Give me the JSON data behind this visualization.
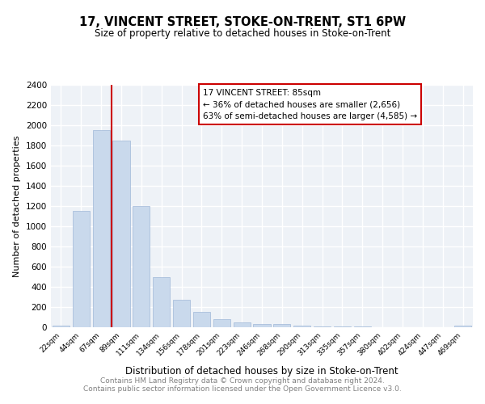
{
  "title": "17, VINCENT STREET, STOKE-ON-TRENT, ST1 6PW",
  "subtitle": "Size of property relative to detached houses in Stoke-on-Trent",
  "xlabel": "Distribution of detached houses by size in Stoke-on-Trent",
  "ylabel": "Number of detached properties",
  "categories": [
    "22sqm",
    "44sqm",
    "67sqm",
    "89sqm",
    "111sqm",
    "134sqm",
    "156sqm",
    "178sqm",
    "201sqm",
    "223sqm",
    "246sqm",
    "268sqm",
    "290sqm",
    "313sqm",
    "335sqm",
    "357sqm",
    "380sqm",
    "402sqm",
    "424sqm",
    "447sqm",
    "469sqm"
  ],
  "values": [
    20,
    1150,
    1950,
    1850,
    1200,
    500,
    270,
    150,
    80,
    50,
    35,
    30,
    15,
    10,
    8,
    5,
    3,
    3,
    2,
    2,
    15
  ],
  "bar_color": "#c9d9ec",
  "bar_edge_color": "#a0b8d8",
  "ylim": [
    0,
    2400
  ],
  "yticks": [
    0,
    200,
    400,
    600,
    800,
    1000,
    1200,
    1400,
    1600,
    1800,
    2000,
    2200,
    2400
  ],
  "annotation_title": "17 VINCENT STREET: 85sqm",
  "annotation_line1": "← 36% of detached houses are smaller (2,656)",
  "annotation_line2": "63% of semi-detached houses are larger (4,585) →",
  "red_line_color": "#cc0000",
  "annotation_box_edge": "#cc0000",
  "footer_line1": "Contains HM Land Registry data © Crown copyright and database right 2024.",
  "footer_line2": "Contains public sector information licensed under the Open Government Licence v3.0.",
  "bg_color": "#eef2f7",
  "grid_color": "#ffffff"
}
